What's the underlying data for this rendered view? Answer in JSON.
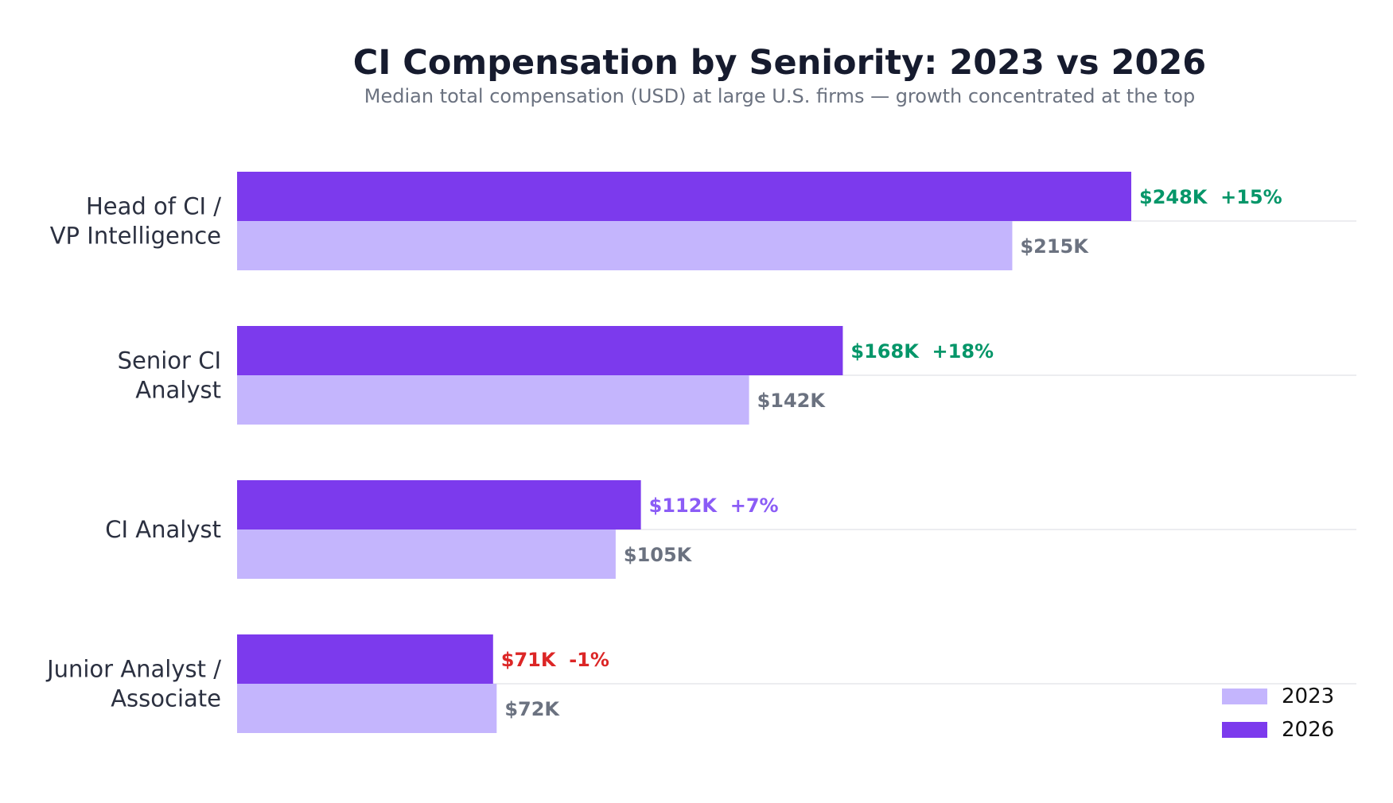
{
  "chart_data": {
    "type": "bar",
    "orientation": "horizontal",
    "title": "CI Compensation by Seniority: 2023 vs 2026",
    "subtitle": "Median total compensation (USD) at large U.S. firms — growth concentrated at the top",
    "categories": [
      [
        "Head of CI /",
        "VP Intelligence"
      ],
      [
        "Senior CI",
        "Analyst"
      ],
      [
        "CI Analyst"
      ],
      [
        "Junior Analyst /",
        "Associate"
      ]
    ],
    "series": [
      {
        "name": "2023",
        "color": "#c4b5fd",
        "values": [
          215,
          142,
          105,
          72
        ],
        "labels": [
          "$215K",
          "$142K",
          "$105K",
          "$72K"
        ]
      },
      {
        "name": "2026",
        "color": "#7c3aed",
        "values": [
          248,
          168,
          112,
          71
        ],
        "labels": [
          "$248K  +15%",
          "$168K  +18%",
          "$112K  +7%",
          "$71K  -1%"
        ],
        "label_colors": [
          "#059669",
          "#059669",
          "#8b5cf6",
          "#dc2626"
        ]
      }
    ],
    "unit": "thousand USD",
    "grid": false,
    "legend_position": "bottom-right"
  }
}
